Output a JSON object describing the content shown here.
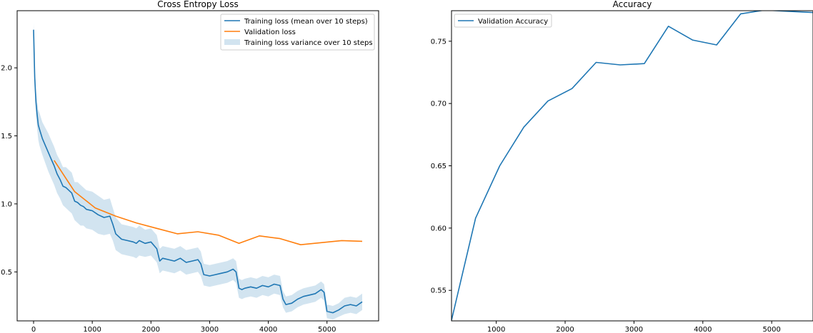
{
  "colors": {
    "training": "#1f77b4",
    "validation": "#ff7f0e",
    "variance": "#1f77b4"
  },
  "chart_data": [
    {
      "type": "line",
      "title": "Cross Entropy Loss",
      "xlabel": "",
      "ylabel": "",
      "xlim": [
        -280,
        5880
      ],
      "ylim": [
        0.14,
        2.42
      ],
      "xticks": [
        0,
        1000,
        2000,
        3000,
        4000,
        5000
      ],
      "xtick_labels": [
        "0",
        "1000",
        "2000",
        "3000",
        "4000",
        "5000"
      ],
      "yticks": [
        0.5,
        1.0,
        1.5,
        2.0
      ],
      "ytick_labels": [
        "0.5",
        "1.0",
        "1.5",
        "2.0"
      ],
      "legend_position": "top-right",
      "legend": [
        "Training loss (mean over 10 steps)",
        "Validation loss",
        "Training loss variance over 10 steps"
      ],
      "series": [
        {
          "name": "Training loss (mean over 10 steps)",
          "x": [
            0,
            20,
            40,
            60,
            80,
            100,
            150,
            200,
            250,
            300,
            350,
            400,
            450,
            500,
            550,
            600,
            650,
            700,
            750,
            800,
            850,
            900,
            1000,
            1100,
            1200,
            1300,
            1350,
            1400,
            1500,
            1600,
            1700,
            1750,
            1800,
            1900,
            2000,
            2100,
            2150,
            2200,
            2300,
            2400,
            2500,
            2600,
            2700,
            2800,
            2850,
            2900,
            3000,
            3100,
            3200,
            3300,
            3400,
            3450,
            3500,
            3550,
            3600,
            3700,
            3800,
            3900,
            4000,
            4100,
            4200,
            4250,
            4300,
            4400,
            4500,
            4600,
            4700,
            4800,
            4900,
            4950,
            5000,
            5100,
            5200,
            5300,
            5400,
            5500,
            5600
          ],
          "values": [
            2.28,
            1.93,
            1.75,
            1.66,
            1.58,
            1.55,
            1.48,
            1.43,
            1.38,
            1.33,
            1.28,
            1.22,
            1.18,
            1.13,
            1.12,
            1.1,
            1.08,
            1.02,
            1.01,
            0.99,
            0.98,
            0.96,
            0.95,
            0.92,
            0.9,
            0.91,
            0.85,
            0.78,
            0.74,
            0.73,
            0.72,
            0.71,
            0.73,
            0.71,
            0.72,
            0.67,
            0.58,
            0.6,
            0.59,
            0.58,
            0.6,
            0.57,
            0.58,
            0.59,
            0.56,
            0.48,
            0.47,
            0.48,
            0.49,
            0.5,
            0.52,
            0.5,
            0.38,
            0.37,
            0.38,
            0.39,
            0.38,
            0.4,
            0.39,
            0.41,
            0.4,
            0.3,
            0.26,
            0.27,
            0.3,
            0.32,
            0.33,
            0.34,
            0.37,
            0.35,
            0.21,
            0.2,
            0.22,
            0.25,
            0.26,
            0.25,
            0.28
          ]
        },
        {
          "name": "Validation loss",
          "x": [
            350,
            700,
            1050,
            1400,
            1750,
            2100,
            2450,
            2800,
            3150,
            3500,
            3850,
            4200,
            4550,
            4900,
            5250,
            5600
          ],
          "values": [
            1.32,
            1.09,
            0.97,
            0.91,
            0.86,
            0.82,
            0.78,
            0.795,
            0.77,
            0.71,
            0.765,
            0.745,
            0.7,
            0.715,
            0.73,
            0.725
          ]
        }
      ],
      "variance_band": {
        "name": "Training loss variance over 10 steps",
        "x": [
          0,
          20,
          40,
          60,
          80,
          100,
          150,
          200,
          250,
          300,
          350,
          400,
          450,
          500,
          550,
          600,
          650,
          700,
          750,
          800,
          850,
          900,
          1000,
          1100,
          1200,
          1300,
          1350,
          1400,
          1500,
          1600,
          1700,
          1750,
          1800,
          1900,
          2000,
          2100,
          2150,
          2200,
          2300,
          2400,
          2500,
          2600,
          2700,
          2800,
          2850,
          2900,
          3000,
          3100,
          3200,
          3300,
          3400,
          3450,
          3500,
          3550,
          3600,
          3700,
          3800,
          3900,
          4000,
          4100,
          4200,
          4250,
          4300,
          4400,
          4500,
          4600,
          4700,
          4800,
          4900,
          4950,
          5000,
          5100,
          5200,
          5300,
          5400,
          5500,
          5600
        ],
        "lower": [
          2.22,
          1.86,
          1.66,
          1.56,
          1.47,
          1.43,
          1.36,
          1.3,
          1.24,
          1.19,
          1.14,
          1.08,
          1.04,
          0.99,
          0.97,
          0.95,
          0.93,
          0.88,
          0.86,
          0.84,
          0.84,
          0.82,
          0.81,
          0.78,
          0.77,
          0.78,
          0.73,
          0.66,
          0.63,
          0.62,
          0.61,
          0.6,
          0.62,
          0.61,
          0.62,
          0.57,
          0.49,
          0.51,
          0.5,
          0.49,
          0.51,
          0.48,
          0.49,
          0.5,
          0.47,
          0.4,
          0.39,
          0.4,
          0.41,
          0.42,
          0.44,
          0.42,
          0.31,
          0.3,
          0.31,
          0.32,
          0.31,
          0.33,
          0.32,
          0.34,
          0.33,
          0.24,
          0.2,
          0.21,
          0.24,
          0.26,
          0.27,
          0.28,
          0.31,
          0.29,
          0.16,
          0.15,
          0.17,
          0.19,
          0.2,
          0.19,
          0.22
        ],
        "upper": [
          2.34,
          2.0,
          1.84,
          1.76,
          1.69,
          1.67,
          1.6,
          1.56,
          1.52,
          1.47,
          1.42,
          1.36,
          1.32,
          1.27,
          1.27,
          1.25,
          1.23,
          1.16,
          1.16,
          1.14,
          1.12,
          1.1,
          1.09,
          1.06,
          1.03,
          1.04,
          0.97,
          0.9,
          0.85,
          0.84,
          0.83,
          0.82,
          0.84,
          0.81,
          0.82,
          0.77,
          0.67,
          0.69,
          0.68,
          0.67,
          0.69,
          0.66,
          0.67,
          0.68,
          0.65,
          0.56,
          0.55,
          0.56,
          0.57,
          0.58,
          0.6,
          0.58,
          0.45,
          0.44,
          0.45,
          0.46,
          0.45,
          0.47,
          0.46,
          0.48,
          0.47,
          0.36,
          0.32,
          0.33,
          0.36,
          0.38,
          0.39,
          0.4,
          0.43,
          0.41,
          0.26,
          0.25,
          0.27,
          0.31,
          0.32,
          0.31,
          0.34
        ]
      }
    },
    {
      "type": "line",
      "title": "Accuracy",
      "xlabel": "",
      "ylabel": "",
      "xlim": [
        350,
        5600
      ],
      "ylim": [
        0.5255,
        0.7745
      ],
      "xticks": [
        1000,
        2000,
        3000,
        4000,
        5000
      ],
      "xtick_labels": [
        "1000",
        "2000",
        "3000",
        "4000",
        "5000"
      ],
      "yticks": [
        0.55,
        0.6,
        0.65,
        0.7,
        0.75
      ],
      "ytick_labels": [
        "0.55",
        "0.60",
        "0.65",
        "0.70",
        "0.75"
      ],
      "legend_position": "top-left",
      "legend": [
        "Validation Accuracy"
      ],
      "series": [
        {
          "name": "Validation Accuracy",
          "x": [
            350,
            700,
            1050,
            1400,
            1750,
            2100,
            2450,
            2800,
            3150,
            3500,
            3850,
            4200,
            4550,
            4900,
            5250,
            5600
          ],
          "values": [
            0.526,
            0.608,
            0.65,
            0.681,
            0.702,
            0.712,
            0.733,
            0.731,
            0.732,
            0.762,
            0.751,
            0.747,
            0.772,
            0.775,
            0.774,
            0.773
          ]
        }
      ]
    }
  ]
}
